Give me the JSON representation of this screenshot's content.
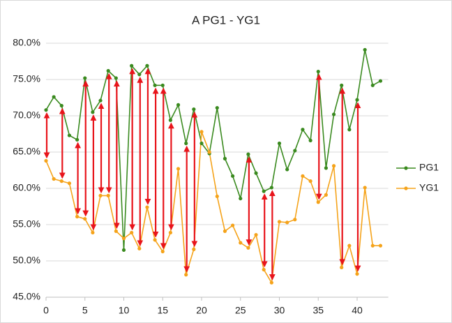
{
  "chart_data": {
    "type": "line",
    "title": "A PG1 - YG1",
    "x": [
      0,
      1,
      2,
      3,
      4,
      5,
      6,
      7,
      8,
      9,
      10,
      11,
      12,
      13,
      14,
      15,
      16,
      17,
      18,
      19,
      20,
      21,
      22,
      23,
      24,
      25,
      26,
      27,
      28,
      29,
      30,
      31,
      32,
      33,
      34,
      35,
      36,
      37,
      38,
      39,
      40,
      41,
      42,
      43
    ],
    "series": [
      {
        "name": "PG1",
        "color": "#3a8a1f",
        "values": [
          70.8,
          72.6,
          71.4,
          67.3,
          66.7,
          75.2,
          70.5,
          72.1,
          76.2,
          75.2,
          51.5,
          76.9,
          75.7,
          76.9,
          74.2,
          74.2,
          69.4,
          71.5,
          66.2,
          70.9,
          66.2,
          64.8,
          71.1,
          64.1,
          61.7,
          58.6,
          64.7,
          62.1,
          59.6,
          60.1,
          66.2,
          62.6,
          65.2,
          68.1,
          66.6,
          76.1,
          62.8,
          70.2,
          74.2,
          68.1,
          72.2,
          79.1,
          74.2,
          74.8
        ]
      },
      {
        "name": "YG1",
        "color": "#f5a31a",
        "values": [
          63.8,
          61.3,
          61.0,
          60.7,
          56.1,
          55.8,
          53.9,
          59.0,
          59.0,
          54.1,
          53.1,
          53.9,
          51.7,
          57.4,
          52.9,
          51.3,
          53.9,
          62.7,
          48.1,
          51.6,
          67.8,
          65.0,
          58.9,
          54.1,
          54.9,
          52.5,
          51.8,
          53.6,
          48.8,
          47.0,
          55.4,
          55.3,
          55.7,
          61.7,
          61.0,
          58.1,
          59.1,
          63.1,
          49.1,
          52.1,
          48.2,
          60.1,
          52.1,
          52.1
        ]
      }
    ],
    "difference_arrows_x": [
      0,
      2,
      4,
      5,
      6,
      7,
      8,
      9,
      11,
      12,
      13,
      14,
      15,
      16,
      18,
      19,
      26,
      28,
      29,
      35,
      38,
      40
    ],
    "arrow_color": "#e8141b",
    "xlim": [
      0,
      44
    ],
    "xticks": [
      0,
      5,
      10,
      15,
      20,
      25,
      30,
      35,
      40
    ],
    "ylim": [
      45,
      80
    ],
    "yticks": [
      {
        "value": 45,
        "label": "45.0%"
      },
      {
        "value": 50,
        "label": "50.0%"
      },
      {
        "value": 55,
        "label": "55.0%"
      },
      {
        "value": 60,
        "label": "60.0%"
      },
      {
        "value": 65,
        "label": "65.0%"
      },
      {
        "value": 70,
        "label": "70.0%"
      },
      {
        "value": 75,
        "label": "75.0%"
      },
      {
        "value": 80,
        "label": "80.0%"
      }
    ],
    "grid": true,
    "legend": "right"
  }
}
